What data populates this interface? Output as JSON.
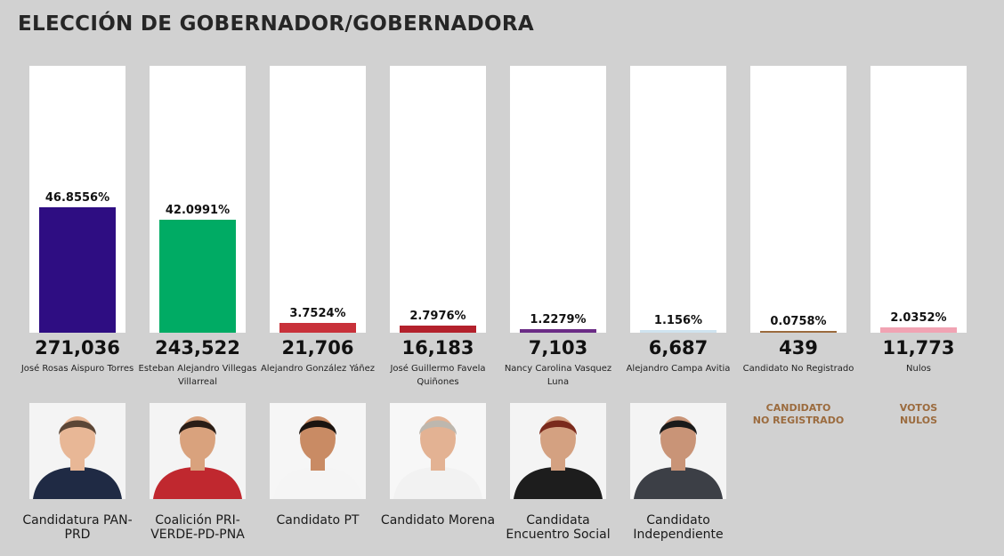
{
  "title": "ELECCIÓN DE GOBERNADOR/GOBERNADORA",
  "chart_data": {
    "type": "bar",
    "title": "ELECCIÓN DE GOBERNADOR/GOBERNADORA",
    "xlabel": "",
    "ylabel": "",
    "ylim": [
      0,
      100
    ],
    "categories": [
      "José Rosas Aispuro Torres",
      "Esteban Alejandro Villegas Villarreal",
      "Alejandro González Yáñez",
      "José Guillermo Favela Quiñones",
      "Nancy Carolina Vasquez Luna",
      "Alejandro Campa Avitia",
      "Candidato No Registrado",
      "Nulos"
    ],
    "values": [
      46.8556,
      42.0991,
      3.7524,
      2.7976,
      1.2279,
      1.156,
      0.0758,
      2.0352
    ],
    "series": [
      {
        "values": [
          46.8556,
          42.0991,
          3.7524,
          2.7976,
          1.2279,
          1.156,
          0.0758,
          2.0352
        ]
      }
    ],
    "bars": [
      {
        "pct": 46.8556,
        "pct_label": "46.8556%",
        "votes": "271,036",
        "candidate": "José Rosas Aispuro Torres",
        "party": "Candidatura PAN-PRD",
        "color": "#2e0d82",
        "photo": "candidate-photo-1"
      },
      {
        "pct": 42.0991,
        "pct_label": "42.0991%",
        "votes": "243,522",
        "candidate": "Esteban Alejandro Villegas Villarreal",
        "party": "Coalición PRI-VERDE-PD-PNA",
        "color": "#00ab64",
        "photo": "candidate-photo-2"
      },
      {
        "pct": 3.7524,
        "pct_label": "3.7524%",
        "votes": "21,706",
        "candidate": "Alejandro González Yáñez",
        "party": "Candidato PT",
        "color": "#c8313a",
        "photo": "candidate-photo-3"
      },
      {
        "pct": 2.7976,
        "pct_label": "2.7976%",
        "votes": "16,183",
        "candidate": "José Guillermo Favela Quiñones",
        "party": "Candidato Morena",
        "color": "#b3212c",
        "photo": "candidate-photo-4"
      },
      {
        "pct": 1.2279,
        "pct_label": "1.2279%",
        "votes": "7,103",
        "candidate": "Nancy Carolina Vasquez Luna",
        "party": "Candidata Encuentro Social",
        "color": "#6b2c86",
        "photo": "candidate-photo-5"
      },
      {
        "pct": 1.156,
        "pct_label": "1.156%",
        "votes": "6,687",
        "candidate": "Alejandro Campa Avitia",
        "party": "Candidato Independiente",
        "color": "#cfe3ef",
        "photo": "candidate-photo-6"
      },
      {
        "pct": 0.0758,
        "pct_label": "0.0758%",
        "votes": "439",
        "candidate": "Candidato No Registrado",
        "party": "CANDIDATO\nNO REGISTRADO",
        "color": "#9b6b3e",
        "photo": ""
      },
      {
        "pct": 2.0352,
        "pct_label": "2.0352%",
        "votes": "11,773",
        "candidate": "Nulos",
        "party": "VOTOS\nNULOS",
        "color": "#f1a3b3",
        "photo": ""
      }
    ]
  },
  "colors": {
    "background": "#d1d1d1",
    "panel": "#ffffff",
    "special_label": "#9b6b3e"
  }
}
